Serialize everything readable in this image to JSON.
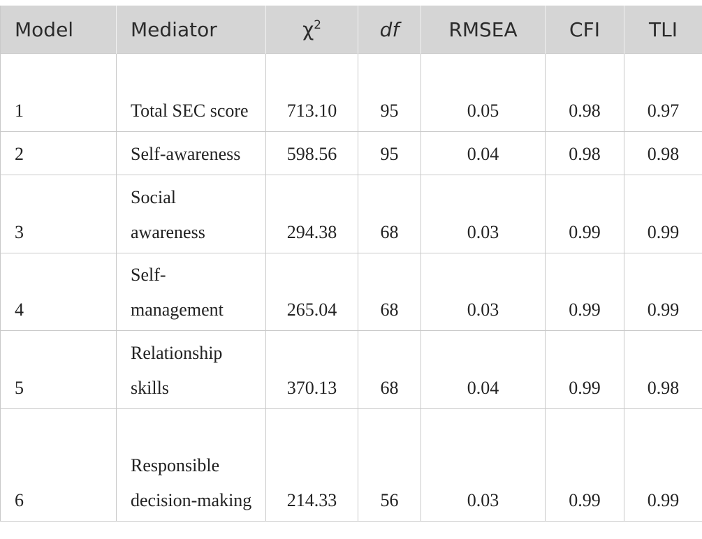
{
  "table": {
    "header": [
      "Model",
      "Mediator",
      {
        "base": "χ",
        "sup": "2"
      },
      "df",
      "RMSEA",
      "CFI",
      "TLI"
    ],
    "rows": [
      [
        "1",
        "Total SEC score",
        "713.10",
        "95",
        "0.05",
        "0.98",
        "0.97"
      ],
      [
        "2",
        "Self-awareness",
        "598.56",
        "95",
        "0.04",
        "0.98",
        "0.98"
      ],
      [
        "3",
        "Social awareness",
        "294.38",
        "68",
        "0.03",
        "0.99",
        "0.99"
      ],
      [
        "4",
        "Self-management",
        "265.04",
        "68",
        "0.03",
        "0.99",
        "0.99"
      ],
      [
        "5",
        "Relationship skills",
        "370.13",
        "68",
        "0.04",
        "0.99",
        "0.98"
      ],
      [
        "6",
        "Responsible decision-making",
        "214.33",
        "56",
        "0.03",
        "0.99",
        "0.99"
      ]
    ]
  }
}
